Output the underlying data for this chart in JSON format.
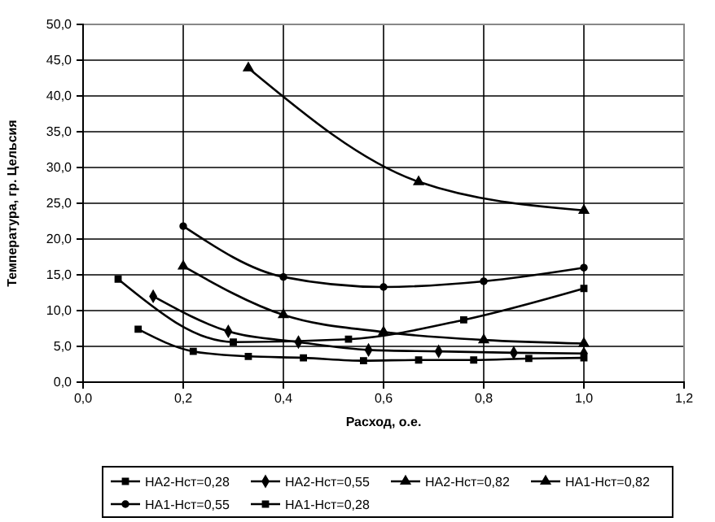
{
  "chart_data": {
    "type": "line",
    "xlabel": "Расход, о.е.",
    "ylabel": "Температура, гр. Цельсия",
    "xlim": [
      0,
      1.2
    ],
    "ylim": [
      0,
      50
    ],
    "xticks": [
      {
        "value": 0,
        "label": "0,0"
      },
      {
        "value": 0.2,
        "label": "0,2"
      },
      {
        "value": 0.4,
        "label": "0,4"
      },
      {
        "value": 0.6,
        "label": "0,6"
      },
      {
        "value": 0.8,
        "label": "0,8"
      },
      {
        "value": 1,
        "label": "1,0"
      },
      {
        "value": 1.2,
        "label": "1,2"
      }
    ],
    "yticks": [
      {
        "value": 0,
        "label": "0,0"
      },
      {
        "value": 5,
        "label": "5,0"
      },
      {
        "value": 10,
        "label": "10,0"
      },
      {
        "value": 15,
        "label": "15,0"
      },
      {
        "value": 20,
        "label": "20,0"
      },
      {
        "value": 25,
        "label": "25,0"
      },
      {
        "value": 30,
        "label": "30,0"
      },
      {
        "value": 35,
        "label": "35,0"
      },
      {
        "value": 40,
        "label": "40,0"
      },
      {
        "value": 45,
        "label": "45,0"
      },
      {
        "value": 50,
        "label": "50,0"
      }
    ],
    "grid": true,
    "legend": "bottom",
    "series": [
      {
        "name": "НА2-Нст=0,28",
        "color": "#000000",
        "marker": "square",
        "x": [
          0.11,
          0.22,
          0.33,
          0.44,
          0.56,
          0.67,
          0.78,
          0.89,
          1.0
        ],
        "values": [
          7.4,
          4.3,
          3.6,
          3.4,
          3.0,
          3.1,
          3.1,
          3.3,
          3.4
        ]
      },
      {
        "name": "НА2-Нст=0,55",
        "color": "#000000",
        "marker": "diamond",
        "x": [
          0.14,
          0.29,
          0.43,
          0.57,
          0.71,
          0.86,
          1.0
        ],
        "values": [
          12.0,
          7.1,
          5.6,
          4.5,
          4.3,
          4.1,
          4.0
        ]
      },
      {
        "name": "НА2-Нст=0,82",
        "color": "#000000",
        "marker": "triangle",
        "x": [
          0.2,
          0.4,
          0.6,
          0.8,
          1.0
        ],
        "values": [
          16.2,
          9.4,
          7.0,
          5.9,
          5.4
        ]
      },
      {
        "name": "НА1-Нст=0,82",
        "color": "#000000",
        "marker": "triangle",
        "x": [
          0.33,
          0.67,
          1.0
        ],
        "values": [
          43.9,
          28.0,
          24.0
        ]
      },
      {
        "name": "НА1-Нст=0,55",
        "color": "#000000",
        "marker": "circle",
        "x": [
          0.2,
          0.4,
          0.6,
          0.8,
          1.0
        ],
        "values": [
          21.8,
          14.7,
          13.3,
          14.1,
          16.0
        ]
      },
      {
        "name": "НА1-Нст=0,28",
        "color": "#000000",
        "marker": "square",
        "x": [
          0.07,
          0.3,
          0.53,
          0.76,
          1.0
        ],
        "values": [
          14.4,
          5.6,
          6.0,
          8.7,
          13.1
        ]
      }
    ]
  }
}
